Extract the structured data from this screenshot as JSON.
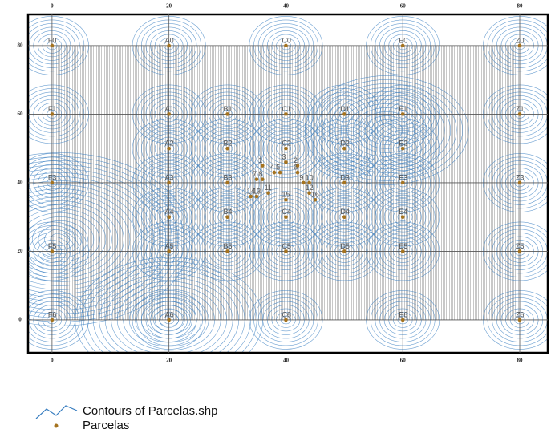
{
  "map": {
    "xlim": [
      -4.1,
      84.8
    ],
    "ylim": [
      -9.6,
      89.1
    ],
    "xticks": [
      0,
      20,
      40,
      60,
      80
    ],
    "yticks": [
      0,
      20,
      40,
      60,
      80
    ],
    "points": [
      {
        "label": "F0",
        "x": 0,
        "y": 80
      },
      {
        "label": "A0",
        "x": 20,
        "y": 80
      },
      {
        "label": "C0",
        "x": 40,
        "y": 80
      },
      {
        "label": "E0",
        "x": 60,
        "y": 80
      },
      {
        "label": "Z0",
        "x": 80,
        "y": 80
      },
      {
        "label": "F1",
        "x": 0,
        "y": 60
      },
      {
        "label": "A1",
        "x": 20,
        "y": 60
      },
      {
        "label": "B1",
        "x": 30,
        "y": 60
      },
      {
        "label": "C1",
        "x": 40,
        "y": 60
      },
      {
        "label": "D1",
        "x": 50,
        "y": 60
      },
      {
        "label": "E1",
        "x": 60,
        "y": 60
      },
      {
        "label": "Z1",
        "x": 80,
        "y": 60
      },
      {
        "label": "A2",
        "x": 20,
        "y": 50
      },
      {
        "label": "B2",
        "x": 30,
        "y": 50
      },
      {
        "label": "C2",
        "x": 40,
        "y": 50
      },
      {
        "label": "D2",
        "x": 50,
        "y": 50
      },
      {
        "label": "E2",
        "x": 60,
        "y": 50
      },
      {
        "label": "F3",
        "x": 0,
        "y": 40
      },
      {
        "label": "A3",
        "x": 20,
        "y": 40
      },
      {
        "label": "B3",
        "x": 30,
        "y": 40
      },
      {
        "label": "D3",
        "x": 50,
        "y": 40
      },
      {
        "label": "E3",
        "x": 60,
        "y": 40
      },
      {
        "label": "Z3",
        "x": 80,
        "y": 40
      },
      {
        "label": "A4",
        "x": 20,
        "y": 30
      },
      {
        "label": "B4",
        "x": 30,
        "y": 30
      },
      {
        "label": "C4",
        "x": 40,
        "y": 30
      },
      {
        "label": "D4",
        "x": 50,
        "y": 30
      },
      {
        "label": "E4",
        "x": 60,
        "y": 30
      },
      {
        "label": "F5",
        "x": 0,
        "y": 20
      },
      {
        "label": "A5",
        "x": 20,
        "y": 20
      },
      {
        "label": "B5",
        "x": 30,
        "y": 20
      },
      {
        "label": "C5",
        "x": 40,
        "y": 20
      },
      {
        "label": "D5",
        "x": 50,
        "y": 20
      },
      {
        "label": "E5",
        "x": 60,
        "y": 20
      },
      {
        "label": "Z5",
        "x": 80,
        "y": 20
      },
      {
        "label": "F6",
        "x": 0,
        "y": 0
      },
      {
        "label": "A6",
        "x": 20,
        "y": 0
      },
      {
        "label": "C6",
        "x": 40,
        "y": 0
      },
      {
        "label": "E6",
        "x": 60,
        "y": 0
      },
      {
        "label": "Z6",
        "x": 80,
        "y": 0
      },
      {
        "label": "1",
        "x": 36,
        "y": 45
      },
      {
        "label": "2",
        "x": 42,
        "y": 45
      },
      {
        "label": "3",
        "x": 40,
        "y": 46
      },
      {
        "label": "4",
        "x": 38,
        "y": 43
      },
      {
        "label": "5",
        "x": 39,
        "y": 43
      },
      {
        "label": "6",
        "x": 42,
        "y": 43
      },
      {
        "label": "7",
        "x": 35,
        "y": 41
      },
      {
        "label": "8",
        "x": 36,
        "y": 41
      },
      {
        "label": "9",
        "x": 43,
        "y": 40
      },
      {
        "label": "10",
        "x": 44,
        "y": 40
      },
      {
        "label": "11",
        "x": 37,
        "y": 37
      },
      {
        "label": "12",
        "x": 44,
        "y": 37
      },
      {
        "label": "13",
        "x": 35,
        "y": 36
      },
      {
        "label": "14",
        "x": 34,
        "y": 36
      },
      {
        "label": "15",
        "x": 40,
        "y": 35
      },
      {
        "label": "16",
        "x": 45,
        "y": 35
      }
    ],
    "legend": [
      {
        "label": "Contours of Parcelas.shp"
      },
      {
        "label": "Parcelas"
      }
    ]
  }
}
